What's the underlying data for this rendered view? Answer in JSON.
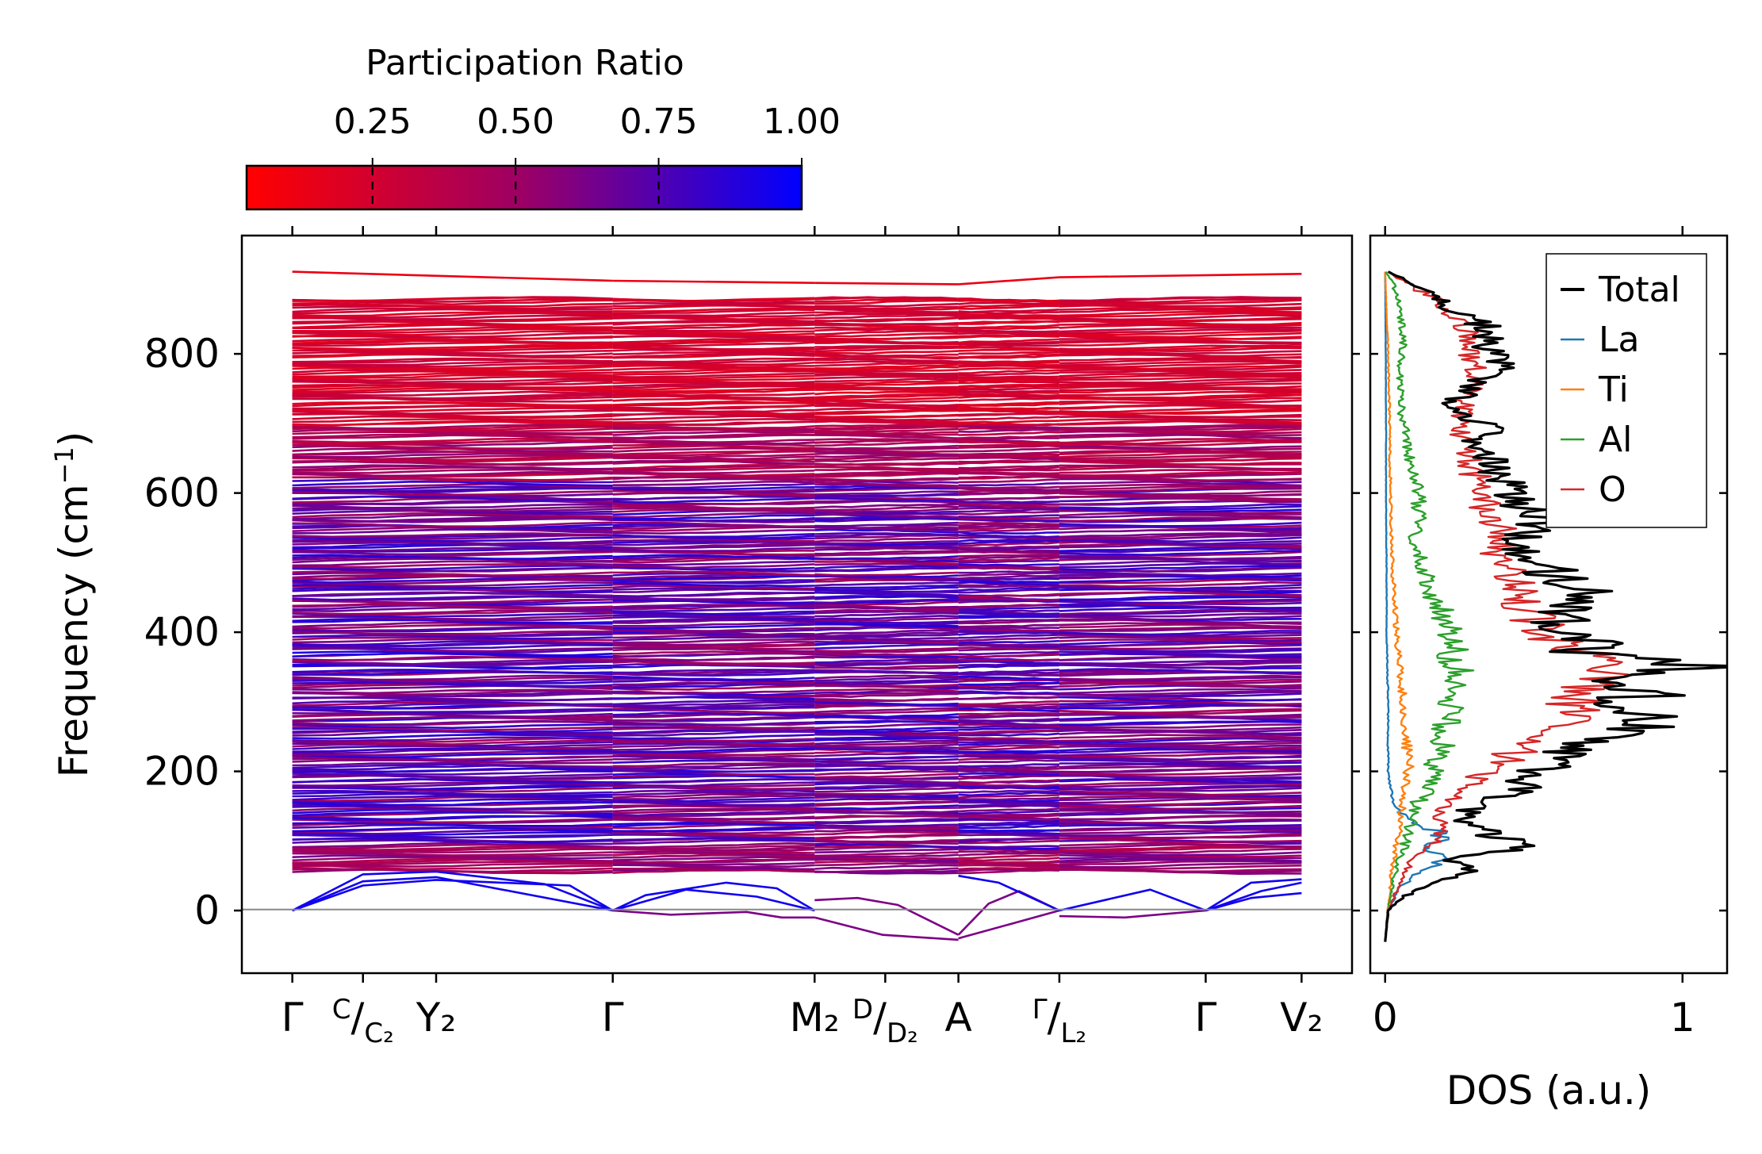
{
  "chart_data": [
    {
      "type": "line",
      "subtype": "phonon-band-structure",
      "ylabel": "Frequency (cm⁻¹)",
      "ylabel_base": "Frequency (cm",
      "ylabel_sup": "−1",
      "ylabel_close": ")",
      "ylim": [
        -90,
        970
      ],
      "yticks": [
        0,
        200,
        400,
        600,
        800
      ],
      "ytick_labels": [
        "0",
        "200",
        "400",
        "600",
        "800"
      ],
      "xlim": [
        -0.1,
        2.1
      ],
      "kpoints": [
        {
          "x": 0.0,
          "label": "Γ"
        },
        {
          "x": 0.14,
          "label": "C|C₂"
        },
        {
          "x": 0.285,
          "label": "Y₂"
        },
        {
          "x": 0.635,
          "label": "Γ"
        },
        {
          "x": 1.035,
          "label": "M₂"
        },
        {
          "x": 1.175,
          "label": "D|D₂"
        },
        {
          "x": 1.32,
          "label": "A"
        },
        {
          "x": 1.52,
          "label": "Γ|L₂"
        },
        {
          "x": 1.81,
          "label": "Γ"
        },
        {
          "x": 2.0,
          "label": "V₂"
        }
      ],
      "band_frequency_range": [
        -45,
        920
      ],
      "acoustic_branches": [
        {
          "x": [
            0,
            0.14,
            0.285,
            0.635
          ],
          "y": [
            0,
            42,
            48,
            0
          ]
        },
        {
          "x": [
            0,
            0.14,
            0.285,
            0.55,
            0.635
          ],
          "y": [
            0,
            36,
            44,
            36,
            0
          ]
        },
        {
          "x": [
            0,
            0.14,
            0.285,
            0.5,
            0.635
          ],
          "y": [
            0,
            52,
            56,
            38,
            0
          ]
        },
        {
          "x": [
            0.635,
            0.7,
            0.86,
            0.96,
            1.035
          ],
          "y": [
            0,
            22,
            40,
            32,
            0
          ]
        },
        {
          "x": [
            0.635,
            0.78,
            0.92,
            1.035
          ],
          "y": [
            0,
            30,
            20,
            0
          ]
        },
        {
          "x": [
            0.635,
            0.75,
            0.9,
            0.97,
            1.035
          ],
          "y": [
            0,
            -6,
            -2,
            -10,
            -10
          ]
        },
        {
          "x": [
            1.035,
            1.12,
            1.2,
            1.32
          ],
          "y": [
            15,
            18,
            8,
            -35
          ]
        },
        {
          "x": [
            1.035,
            1.17,
            1.32
          ],
          "y": [
            -10,
            -35,
            -42
          ]
        },
        {
          "x": [
            1.32,
            1.38,
            1.44,
            1.52
          ],
          "y": [
            -35,
            10,
            28,
            0
          ]
        },
        {
          "x": [
            1.32,
            1.42,
            1.52
          ],
          "y": [
            -40,
            -20,
            0
          ]
        },
        {
          "x": [
            1.32,
            1.4,
            1.52
          ],
          "y": [
            50,
            40,
            0
          ]
        },
        {
          "x": [
            1.52,
            1.7,
            1.81
          ],
          "y": [
            0,
            30,
            0
          ]
        },
        {
          "x": [
            1.52,
            1.65,
            1.81
          ],
          "y": [
            -8,
            -10,
            0
          ]
        },
        {
          "x": [
            1.81,
            1.9,
            2.0
          ],
          "y": [
            0,
            40,
            45
          ]
        },
        {
          "x": [
            1.81,
            1.92,
            2.0
          ],
          "y": [
            0,
            28,
            40
          ]
        },
        {
          "x": [
            1.81,
            1.9,
            2.0
          ],
          "y": [
            0,
            18,
            25
          ]
        }
      ]
    },
    {
      "type": "line",
      "subtype": "density-of-states",
      "xlabel": "DOS (a.u.)",
      "xlim": [
        -0.05,
        1.15
      ],
      "xticks": [
        0,
        1
      ],
      "xtick_labels": [
        "0",
        "1"
      ],
      "ylim": [
        -90,
        970
      ],
      "legend_position": "upper-right",
      "series": [
        {
          "name": "Total",
          "color": "#000000",
          "freq": [
            -45,
            0,
            20,
            40,
            60,
            75,
            90,
            110,
            130,
            150,
            170,
            190,
            210,
            230,
            250,
            270,
            290,
            310,
            330,
            350,
            360,
            370,
            390,
            410,
            430,
            450,
            470,
            490,
            510,
            530,
            550,
            570,
            590,
            610,
            630,
            650,
            670,
            690,
            710,
            730,
            750,
            770,
            790,
            810,
            830,
            850,
            870,
            890,
            910,
            920
          ],
          "dos": [
            0,
            0.01,
            0.06,
            0.18,
            0.28,
            0.22,
            0.48,
            0.35,
            0.25,
            0.3,
            0.42,
            0.5,
            0.55,
            0.6,
            0.75,
            0.9,
            0.8,
            0.86,
            0.72,
            1.1,
            0.85,
            0.65,
            0.72,
            0.58,
            0.62,
            0.7,
            0.6,
            0.55,
            0.48,
            0.46,
            0.52,
            0.5,
            0.45,
            0.42,
            0.38,
            0.35,
            0.3,
            0.35,
            0.28,
            0.22,
            0.3,
            0.35,
            0.4,
            0.33,
            0.36,
            0.3,
            0.2,
            0.15,
            0.05,
            0
          ]
        },
        {
          "name": "La",
          "color": "#1f77b4",
          "freq": [
            -45,
            0,
            30,
            50,
            70,
            90,
            110,
            130,
            150,
            170,
            200,
            300,
            400,
            500,
            600,
            700,
            800,
            920
          ],
          "dos": [
            0,
            0.01,
            0.04,
            0.1,
            0.18,
            0.15,
            0.2,
            0.08,
            0.03,
            0.02,
            0.01,
            0.01,
            0.005,
            0.005,
            0.003,
            0.003,
            0.002,
            0
          ],
          "width": 2
        },
        {
          "name": "Ti",
          "color": "#ff7f0e",
          "freq": [
            -45,
            0,
            50,
            100,
            150,
            200,
            250,
            300,
            350,
            400,
            450,
            500,
            550,
            600,
            650,
            700,
            800,
            920
          ],
          "dos": [
            0,
            0.01,
            0.02,
            0.04,
            0.06,
            0.08,
            0.07,
            0.06,
            0.05,
            0.04,
            0.03,
            0.025,
            0.02,
            0.02,
            0.015,
            0.015,
            0.01,
            0
          ],
          "width": 2
        },
        {
          "name": "Al",
          "color": "#2ca02c",
          "freq": [
            -45,
            0,
            50,
            100,
            150,
            180,
            220,
            260,
            300,
            340,
            380,
            420,
            460,
            500,
            540,
            580,
            620,
            660,
            700,
            740,
            780,
            820,
            860,
            900,
            920
          ],
          "dos": [
            0,
            0.01,
            0.03,
            0.07,
            0.1,
            0.15,
            0.18,
            0.2,
            0.22,
            0.25,
            0.22,
            0.2,
            0.15,
            0.12,
            0.1,
            0.12,
            0.1,
            0.08,
            0.06,
            0.05,
            0.05,
            0.06,
            0.05,
            0.03,
            0
          ],
          "width": 2
        },
        {
          "name": "O",
          "color": "#d62728",
          "freq": [
            -45,
            0,
            40,
            80,
            110,
            140,
            170,
            200,
            230,
            260,
            300,
            330,
            360,
            390,
            420,
            450,
            480,
            510,
            540,
            570,
            600,
            630,
            660,
            690,
            720,
            750,
            780,
            810,
            840,
            870,
            900,
            920
          ],
          "dos": [
            0,
            0.01,
            0.05,
            0.1,
            0.2,
            0.18,
            0.25,
            0.35,
            0.45,
            0.55,
            0.65,
            0.7,
            0.72,
            0.55,
            0.5,
            0.45,
            0.42,
            0.38,
            0.4,
            0.35,
            0.32,
            0.3,
            0.28,
            0.26,
            0.25,
            0.28,
            0.3,
            0.28,
            0.26,
            0.2,
            0.08,
            0
          ],
          "width": 2
        }
      ]
    }
  ],
  "colorbar": {
    "title": "Participation Ratio",
    "tick_values": [
      0.25,
      0.5,
      0.75,
      1.0
    ],
    "tick_labels": [
      "0.25",
      "0.50",
      "0.75",
      "1.00"
    ],
    "range": [
      0.03,
      1.0
    ],
    "color_low": "#ff0000",
    "color_high": "#0000ff"
  }
}
